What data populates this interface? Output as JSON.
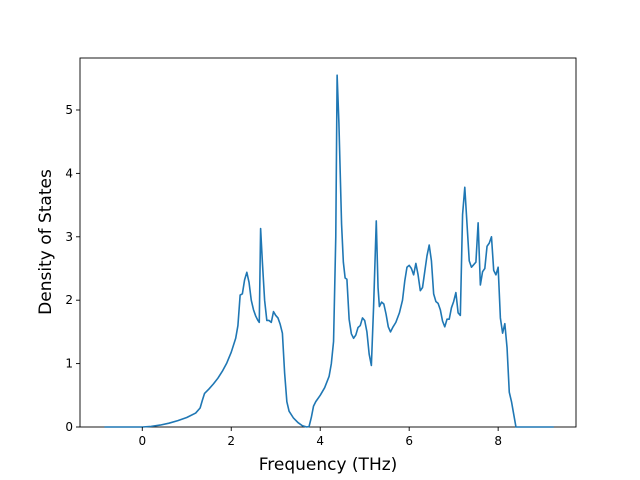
{
  "chart_data": {
    "type": "line",
    "title": "",
    "xlabel": "Frequency (THz)",
    "ylabel": "Density of States",
    "xlim": [
      -1.4,
      9.75
    ],
    "ylim": [
      0,
      5.82
    ],
    "xticks": [
      0,
      2,
      4,
      6,
      8
    ],
    "yticks": [
      0,
      1,
      2,
      3,
      4,
      5
    ],
    "grid": false,
    "line_color": "#1f77b4",
    "series": [
      {
        "points": [
          [
            -0.85,
            0.0
          ],
          [
            0.0,
            0.0
          ],
          [
            0.2,
            0.01
          ],
          [
            0.4,
            0.03
          ],
          [
            0.6,
            0.06
          ],
          [
            0.8,
            0.1
          ],
          [
            1.0,
            0.15
          ],
          [
            1.2,
            0.22
          ],
          [
            1.3,
            0.3
          ],
          [
            1.35,
            0.42
          ],
          [
            1.4,
            0.53
          ],
          [
            1.5,
            0.6
          ],
          [
            1.6,
            0.68
          ],
          [
            1.7,
            0.77
          ],
          [
            1.8,
            0.88
          ],
          [
            1.9,
            1.01
          ],
          [
            2.0,
            1.18
          ],
          [
            2.1,
            1.4
          ],
          [
            2.15,
            1.6
          ],
          [
            2.2,
            2.08
          ],
          [
            2.25,
            2.1
          ],
          [
            2.3,
            2.32
          ],
          [
            2.35,
            2.44
          ],
          [
            2.4,
            2.28
          ],
          [
            2.45,
            2.0
          ],
          [
            2.5,
            1.85
          ],
          [
            2.55,
            1.75
          ],
          [
            2.6,
            1.68
          ],
          [
            2.63,
            1.65
          ],
          [
            2.66,
            3.13
          ],
          [
            2.7,
            2.6
          ],
          [
            2.75,
            2.0
          ],
          [
            2.8,
            1.68
          ],
          [
            2.85,
            1.68
          ],
          [
            2.9,
            1.65
          ],
          [
            2.95,
            1.82
          ],
          [
            3.0,
            1.76
          ],
          [
            3.05,
            1.72
          ],
          [
            3.1,
            1.62
          ],
          [
            3.15,
            1.48
          ],
          [
            3.2,
            0.85
          ],
          [
            3.25,
            0.4
          ],
          [
            3.3,
            0.25
          ],
          [
            3.4,
            0.14
          ],
          [
            3.5,
            0.07
          ],
          [
            3.6,
            0.02
          ],
          [
            3.7,
            0.0
          ],
          [
            3.75,
            0.01
          ],
          [
            3.8,
            0.15
          ],
          [
            3.85,
            0.33
          ],
          [
            3.9,
            0.4
          ],
          [
            4.0,
            0.5
          ],
          [
            4.1,
            0.62
          ],
          [
            4.2,
            0.8
          ],
          [
            4.25,
            1.0
          ],
          [
            4.3,
            1.35
          ],
          [
            4.35,
            3.0
          ],
          [
            4.38,
            5.55
          ],
          [
            4.42,
            4.8
          ],
          [
            4.48,
            3.2
          ],
          [
            4.52,
            2.6
          ],
          [
            4.56,
            2.35
          ],
          [
            4.6,
            2.33
          ],
          [
            4.65,
            1.7
          ],
          [
            4.7,
            1.47
          ],
          [
            4.75,
            1.4
          ],
          [
            4.8,
            1.45
          ],
          [
            4.85,
            1.57
          ],
          [
            4.9,
            1.6
          ],
          [
            4.95,
            1.72
          ],
          [
            5.0,
            1.68
          ],
          [
            5.05,
            1.5
          ],
          [
            5.1,
            1.15
          ],
          [
            5.15,
            0.97
          ],
          [
            5.2,
            1.9
          ],
          [
            5.26,
            3.25
          ],
          [
            5.3,
            2.2
          ],
          [
            5.33,
            1.9
          ],
          [
            5.38,
            1.97
          ],
          [
            5.43,
            1.94
          ],
          [
            5.48,
            1.78
          ],
          [
            5.53,
            1.58
          ],
          [
            5.58,
            1.5
          ],
          [
            5.63,
            1.57
          ],
          [
            5.7,
            1.65
          ],
          [
            5.78,
            1.8
          ],
          [
            5.85,
            2.0
          ],
          [
            5.9,
            2.3
          ],
          [
            5.95,
            2.52
          ],
          [
            6.0,
            2.55
          ],
          [
            6.05,
            2.5
          ],
          [
            6.1,
            2.4
          ],
          [
            6.15,
            2.58
          ],
          [
            6.2,
            2.4
          ],
          [
            6.25,
            2.15
          ],
          [
            6.3,
            2.2
          ],
          [
            6.35,
            2.45
          ],
          [
            6.4,
            2.7
          ],
          [
            6.45,
            2.87
          ],
          [
            6.5,
            2.62
          ],
          [
            6.55,
            2.1
          ],
          [
            6.6,
            1.98
          ],
          [
            6.65,
            1.95
          ],
          [
            6.7,
            1.85
          ],
          [
            6.75,
            1.67
          ],
          [
            6.8,
            1.58
          ],
          [
            6.85,
            1.7
          ],
          [
            6.9,
            1.7
          ],
          [
            6.95,
            1.88
          ],
          [
            7.0,
            1.98
          ],
          [
            7.05,
            2.12
          ],
          [
            7.1,
            1.8
          ],
          [
            7.15,
            1.76
          ],
          [
            7.2,
            3.35
          ],
          [
            7.25,
            3.78
          ],
          [
            7.3,
            3.2
          ],
          [
            7.35,
            2.62
          ],
          [
            7.4,
            2.52
          ],
          [
            7.45,
            2.56
          ],
          [
            7.5,
            2.6
          ],
          [
            7.55,
            3.22
          ],
          [
            7.6,
            2.24
          ],
          [
            7.65,
            2.45
          ],
          [
            7.7,
            2.5
          ],
          [
            7.75,
            2.85
          ],
          [
            7.8,
            2.9
          ],
          [
            7.85,
            3.0
          ],
          [
            7.9,
            2.47
          ],
          [
            7.95,
            2.4
          ],
          [
            8.0,
            2.52
          ],
          [
            8.05,
            1.72
          ],
          [
            8.1,
            1.48
          ],
          [
            8.15,
            1.63
          ],
          [
            8.2,
            1.25
          ],
          [
            8.25,
            0.55
          ],
          [
            8.3,
            0.4
          ],
          [
            8.35,
            0.2
          ],
          [
            8.4,
            0.0
          ],
          [
            9.25,
            0.0
          ]
        ]
      }
    ]
  }
}
